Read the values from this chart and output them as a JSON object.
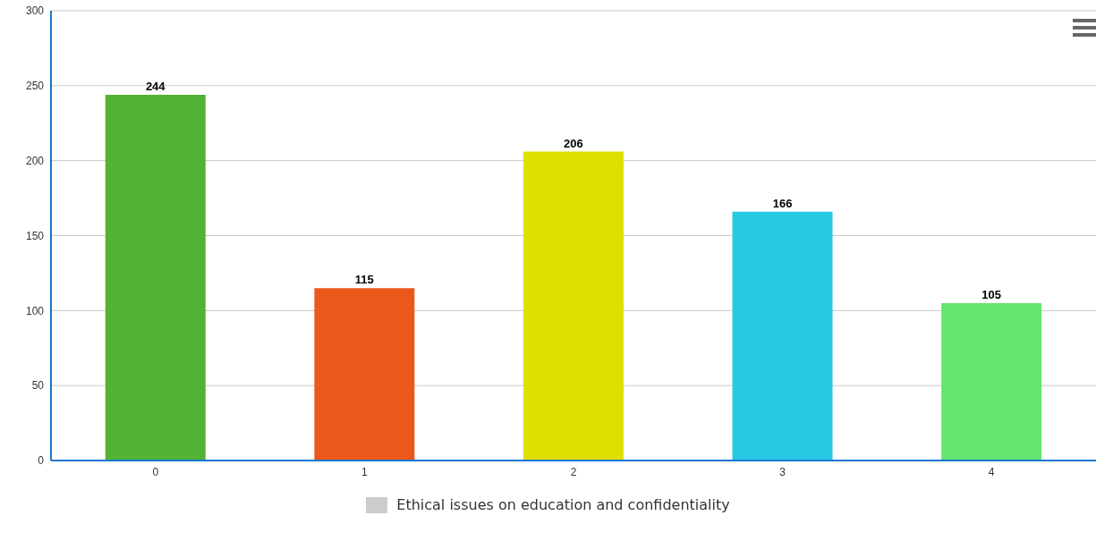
{
  "chart_data": {
    "type": "bar",
    "categories": [
      "0",
      "1",
      "2",
      "3",
      "4"
    ],
    "series": [
      {
        "name": "Ethical issues on education and confidentiality",
        "color": "#cccccc",
        "colors": [
          "#52b233",
          "#ec581c",
          "#dee000",
          "#25c9e3",
          "#64e570"
        ],
        "values": [
          244,
          115,
          206,
          166,
          105
        ]
      }
    ],
    "ylim": [
      0,
      300
    ],
    "yticks": [
      0,
      50,
      100,
      150,
      200,
      250,
      300
    ],
    "grid": "y",
    "legend": "bottom",
    "data_labels": true
  }
}
